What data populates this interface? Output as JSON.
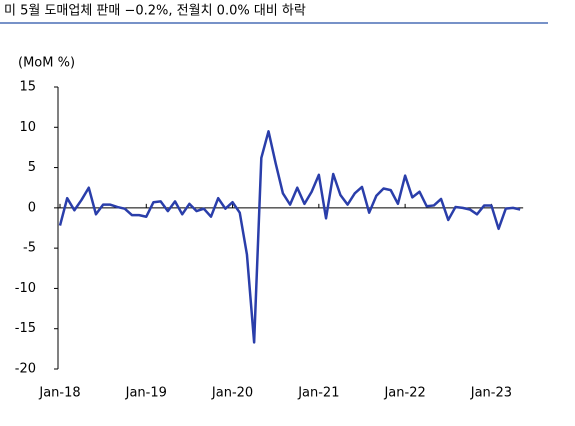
{
  "chart_data": {
    "type": "line",
    "title": "미 5월 도매업체 판매 −0.2%, 전월치 0.0% 대비 하락",
    "y_label": "(MoM %)",
    "color": "#2a3eaa",
    "categories": [
      "Jan-18",
      null,
      null,
      null,
      null,
      null,
      null,
      null,
      null,
      null,
      null,
      null,
      "Jan-19",
      null,
      null,
      null,
      null,
      null,
      null,
      null,
      null,
      null,
      null,
      null,
      "Jan-20",
      null,
      null,
      null,
      null,
      null,
      null,
      null,
      null,
      null,
      null,
      null,
      "Jan-21",
      null,
      null,
      null,
      null,
      null,
      null,
      null,
      null,
      null,
      null,
      null,
      "Jan-22",
      null,
      null,
      null,
      null,
      null,
      null,
      null,
      null,
      null,
      null,
      null,
      "Jan-23",
      null,
      null,
      null,
      null
    ],
    "values": [
      -2.2,
      1.2,
      -0.3,
      1.0,
      2.5,
      -0.8,
      0.4,
      0.4,
      0.1,
      -0.1,
      -0.9,
      -0.9,
      -1.1,
      0.7,
      0.8,
      -0.4,
      0.8,
      -0.8,
      0.5,
      -0.4,
      -0.1,
      -1.1,
      1.2,
      -0.1,
      0.7,
      -0.6,
      -5.8,
      -16.7,
      6.2,
      9.5,
      5.5,
      1.8,
      0.4,
      2.5,
      0.5,
      2.0,
      4.1,
      -1.3,
      4.2,
      1.6,
      0.4,
      1.8,
      2.6,
      -0.6,
      1.5,
      2.4,
      2.2,
      0.5,
      4.0,
      1.3,
      2.0,
      0.2,
      0.3,
      1.1,
      -1.5,
      0.1,
      0.0,
      -0.2,
      -0.8,
      0.3,
      0.3,
      -2.6,
      -0.1,
      0.0,
      -0.2
    ],
    "ylim": [
      -20,
      15
    ],
    "yticks": [
      -20,
      -15,
      -10,
      -5,
      0,
      5,
      10,
      15
    ]
  }
}
